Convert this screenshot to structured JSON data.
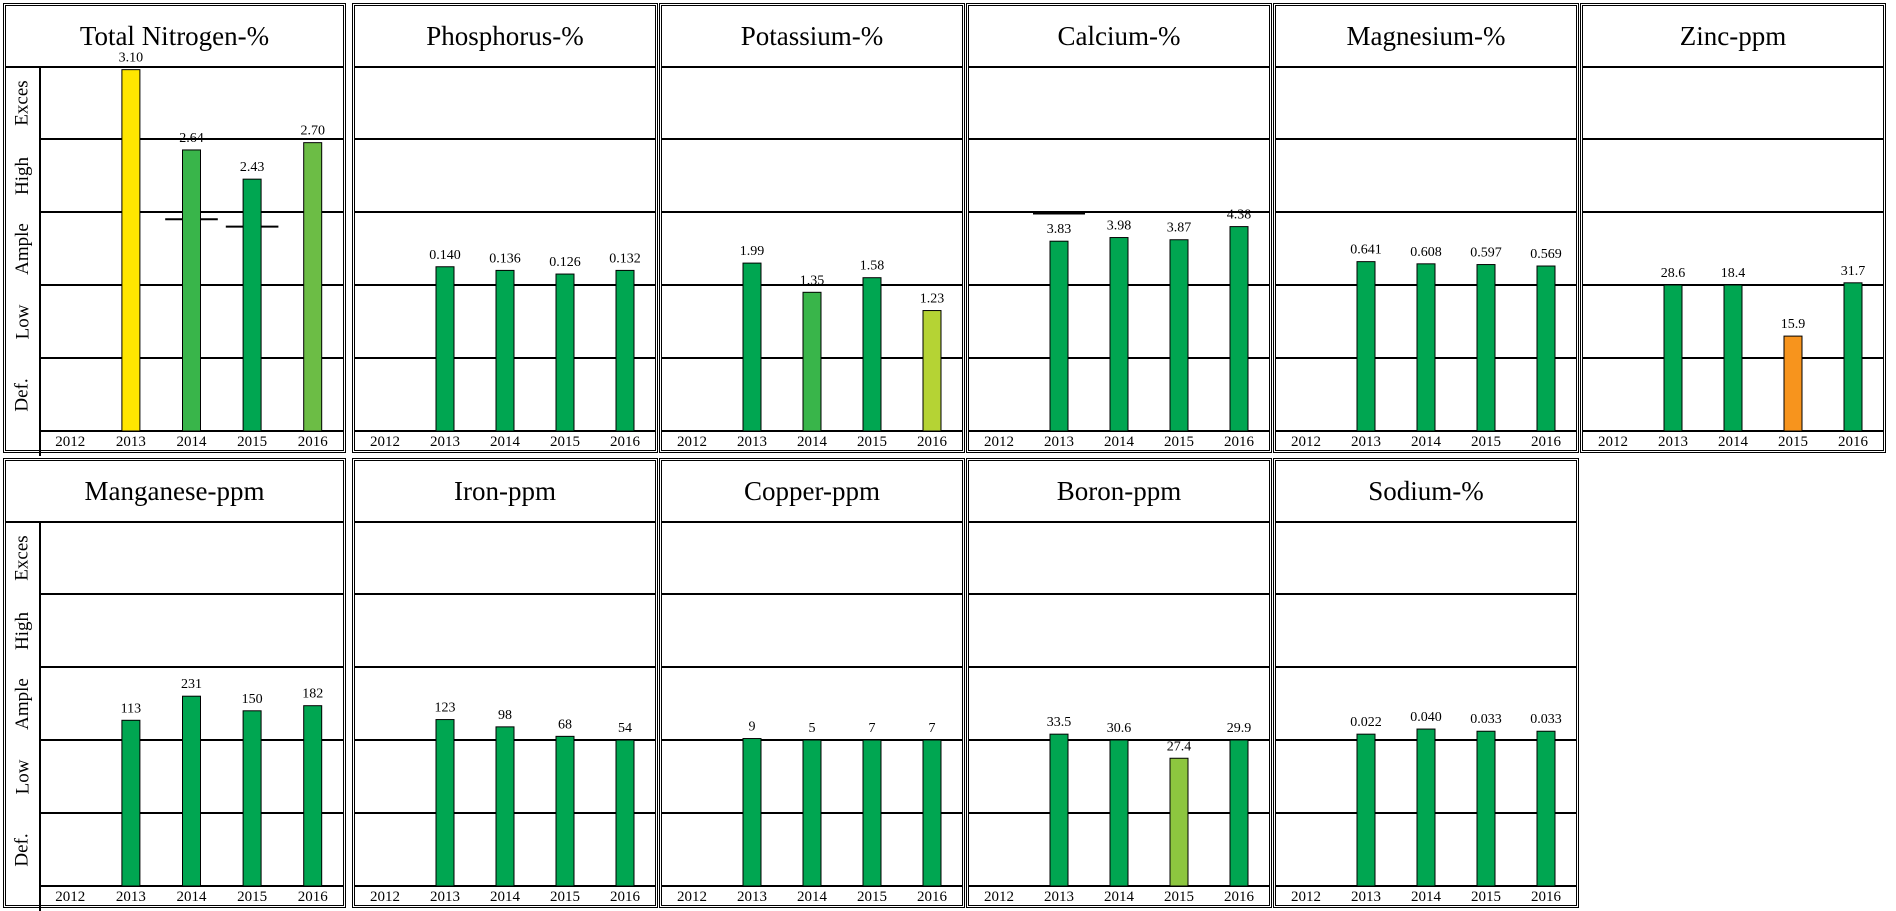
{
  "bands": [
    "Def.",
    "Low",
    "Ample",
    "High",
    "Exces"
  ],
  "years": [
    "2012",
    "2013",
    "2014",
    "2015",
    "2016"
  ],
  "colors": {
    "dark_green": "#00A651",
    "green": "#39B54A",
    "light_green": "#8DC63F",
    "yellow_green": "#B5D334",
    "yellow": "#FFE600",
    "orange": "#F7941D"
  },
  "chart_data": [
    {
      "type": "bar",
      "title": "Total Nitrogen-%",
      "categories": [
        "2012",
        "2013",
        "2014",
        "2015",
        "2016"
      ],
      "values": [
        null,
        3.1,
        2.64,
        2.43,
        2.7
      ],
      "labels": [
        "",
        "3.10",
        "2.64",
        "2.43",
        "2.70"
      ],
      "levels": [
        null,
        4.95,
        3.85,
        3.45,
        3.95
      ],
      "status_colors": [
        null,
        "#FFE600",
        "#39B54A",
        "#00A651",
        "#6CBD45"
      ],
      "thresholds": [
        {
          "between": [
            1,
            2
          ],
          "level": 3.0
        },
        {
          "between": [
            2,
            3
          ],
          "level": 2.9
        },
        {
          "between": [
            3,
            4
          ],
          "level": 2.8
        },
        {
          "between": [
            4,
            5
          ],
          "level": 3.0
        }
      ]
    },
    {
      "type": "bar",
      "title": "Phosphorus-%",
      "categories": [
        "2012",
        "2013",
        "2014",
        "2015",
        "2016"
      ],
      "values": [
        null,
        0.14,
        0.136,
        0.126,
        0.132
      ],
      "labels": [
        "",
        "0.140",
        "0.136",
        "0.126",
        "0.132"
      ],
      "levels": [
        null,
        2.25,
        2.2,
        2.15,
        2.2
      ],
      "status_colors": [
        null,
        "#00A651",
        "#00A651",
        "#00A651",
        "#00A651"
      ],
      "thresholds": [
        {
          "between": [
            0,
            5
          ],
          "level": 2.0
        }
      ]
    },
    {
      "type": "bar",
      "title": "Potassium-%",
      "categories": [
        "2012",
        "2013",
        "2014",
        "2015",
        "2016"
      ],
      "values": [
        null,
        1.99,
        1.35,
        1.58,
        1.23
      ],
      "labels": [
        "",
        "1.99",
        "1.35",
        "1.58",
        "1.23"
      ],
      "levels": [
        null,
        2.3,
        1.9,
        2.1,
        1.65
      ],
      "status_colors": [
        null,
        "#00A651",
        "#39B54A",
        "#00A651",
        "#B5D334"
      ],
      "thresholds": [
        {
          "between": [
            2,
            3
          ],
          "level": 2.0
        },
        {
          "between": [
            3,
            4
          ],
          "level": 2.0
        },
        {
          "between": [
            4,
            5
          ],
          "level": 2.0
        }
      ]
    },
    {
      "type": "bar",
      "title": "Calcium-%",
      "categories": [
        "2012",
        "2013",
        "2014",
        "2015",
        "2016"
      ],
      "values": [
        null,
        3.83,
        3.98,
        3.87,
        4.38
      ],
      "labels": [
        "",
        "3.83",
        "3.98",
        "3.87",
        "4.38"
      ],
      "levels": [
        null,
        2.6,
        2.65,
        2.62,
        2.8
      ],
      "status_colors": [
        null,
        "#00A651",
        "#00A651",
        "#00A651",
        "#00A651"
      ],
      "thresholds": [
        {
          "between": [
            0,
            1
          ],
          "level": 3.0
        },
        {
          "between": [
            1,
            2
          ],
          "level": 2.98
        },
        {
          "between": [
            2,
            3
          ],
          "level": 3.0
        },
        {
          "between": [
            3,
            4
          ],
          "level": 3.0
        },
        {
          "between": [
            4,
            5
          ],
          "level": 3.0
        }
      ]
    },
    {
      "type": "bar",
      "title": "Magnesium-%",
      "categories": [
        "2012",
        "2013",
        "2014",
        "2015",
        "2016"
      ],
      "values": [
        null,
        0.641,
        0.608,
        0.597,
        0.569
      ],
      "labels": [
        "",
        "0.641",
        "0.608",
        "0.597",
        "0.569"
      ],
      "levels": [
        null,
        2.32,
        2.29,
        2.28,
        2.26
      ],
      "status_colors": [
        null,
        "#00A651",
        "#00A651",
        "#00A651",
        "#00A651"
      ],
      "thresholds": [
        {
          "between": [
            0,
            5
          ],
          "level": 3.0
        }
      ]
    },
    {
      "type": "bar",
      "title": "Zinc-ppm",
      "categories": [
        "2012",
        "2013",
        "2014",
        "2015",
        "2016"
      ],
      "values": [
        null,
        28.6,
        18.4,
        15.9,
        31.7
      ],
      "labels": [
        "",
        "28.6",
        "18.4",
        "15.9",
        "31.7"
      ],
      "levels": [
        null,
        2.0,
        2.0,
        1.3,
        2.03
      ],
      "status_colors": [
        null,
        "#00A651",
        "#00A651",
        "#F7941D",
        "#00A651"
      ],
      "thresholds": [
        {
          "between": [
            1,
            2
          ],
          "level": 2.0
        },
        {
          "between": [
            4,
            5
          ],
          "level": 2.0
        }
      ]
    },
    {
      "type": "bar",
      "title": "Manganese-ppm",
      "categories": [
        "2012",
        "2013",
        "2014",
        "2015",
        "2016"
      ],
      "values": [
        null,
        113,
        231,
        150,
        182
      ],
      "labels": [
        "",
        "113",
        "231",
        "150",
        "182"
      ],
      "levels": [
        null,
        2.27,
        2.6,
        2.4,
        2.47
      ],
      "status_colors": [
        null,
        "#00A651",
        "#00A651",
        "#00A651",
        "#00A651"
      ],
      "thresholds": []
    },
    {
      "type": "bar",
      "title": "Iron-ppm",
      "categories": [
        "2012",
        "2013",
        "2014",
        "2015",
        "2016"
      ],
      "values": [
        null,
        123,
        98,
        68,
        54
      ],
      "labels": [
        "",
        "123",
        "98",
        "68",
        "54"
      ],
      "levels": [
        null,
        2.28,
        2.18,
        2.05,
        2.0
      ],
      "status_colors": [
        null,
        "#00A651",
        "#00A651",
        "#00A651",
        "#00A651"
      ],
      "thresholds": [
        {
          "between": [
            0,
            5
          ],
          "level": 2.0
        }
      ]
    },
    {
      "type": "bar",
      "title": "Copper-ppm",
      "categories": [
        "2012",
        "2013",
        "2014",
        "2015",
        "2016"
      ],
      "values": [
        null,
        9,
        5,
        7,
        7
      ],
      "labels": [
        "",
        "9",
        "5",
        "7",
        "7"
      ],
      "levels": [
        null,
        2.02,
        2.0,
        2.0,
        2.0
      ],
      "status_colors": [
        null,
        "#00A651",
        "#00A651",
        "#00A651",
        "#00A651"
      ],
      "thresholds": [
        {
          "between": [
            0,
            5
          ],
          "level": 2.0
        }
      ]
    },
    {
      "type": "bar",
      "title": "Boron-ppm",
      "categories": [
        "2012",
        "2013",
        "2014",
        "2015",
        "2016"
      ],
      "values": [
        null,
        33.5,
        30.6,
        27.4,
        29.9
      ],
      "labels": [
        "",
        "33.5",
        "30.6",
        "27.4",
        "29.9"
      ],
      "levels": [
        null,
        2.08,
        2.0,
        1.75,
        2.0
      ],
      "status_colors": [
        null,
        "#00A651",
        "#00A651",
        "#8DC63F",
        "#00A651"
      ],
      "thresholds": [
        {
          "between": [
            0,
            5
          ],
          "level": 2.0
        }
      ]
    },
    {
      "type": "bar",
      "title": "Sodium-%",
      "categories": [
        "2012",
        "2013",
        "2014",
        "2015",
        "2016"
      ],
      "values": [
        null,
        0.022,
        0.04,
        0.033,
        0.033
      ],
      "labels": [
        "",
        "0.022",
        "0.040",
        "0.033",
        "0.033"
      ],
      "levels": [
        null,
        2.08,
        2.15,
        2.12,
        2.12
      ],
      "status_colors": [
        null,
        "#00A651",
        "#00A651",
        "#00A651",
        "#00A651"
      ],
      "thresholds": [
        {
          "between": [
            0,
            5
          ],
          "level": 2.0
        }
      ]
    }
  ]
}
